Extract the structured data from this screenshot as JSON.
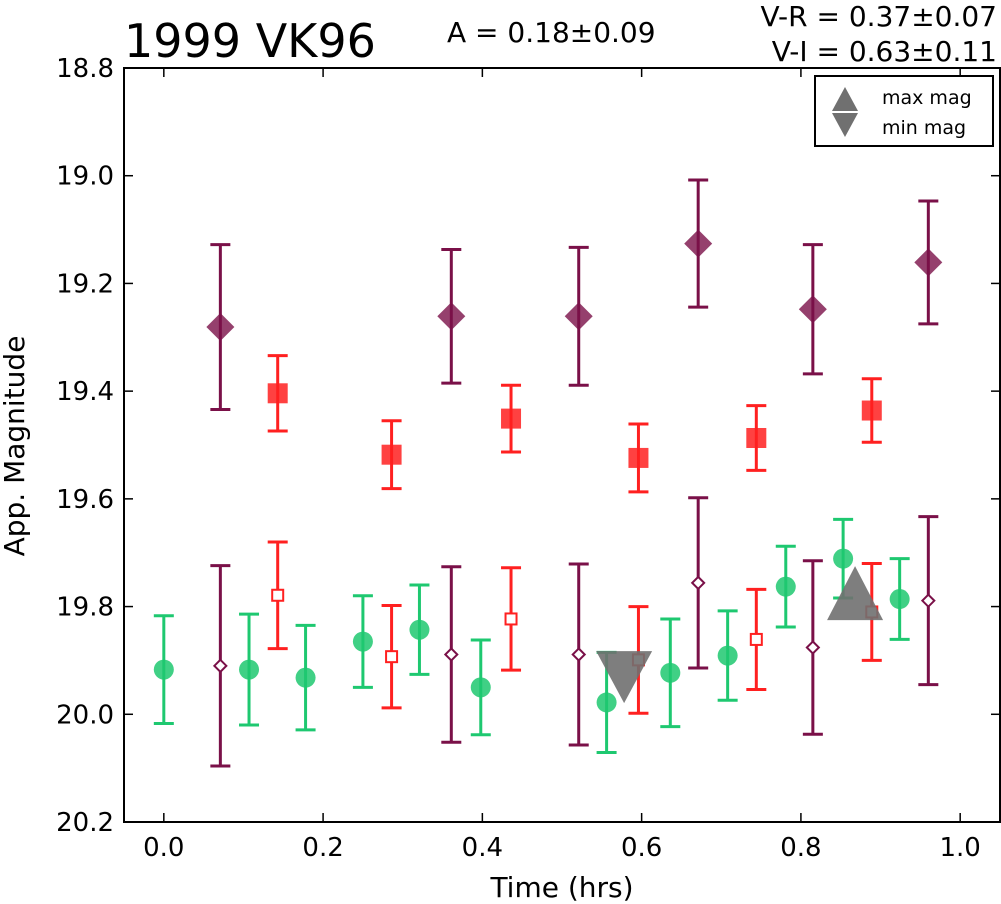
{
  "chart_data": {
    "type": "scatter",
    "title": "1999 VK96",
    "annotations": {
      "amplitude": "A  = 0.18±0.09",
      "v_r": "V-R = 0.37±0.07",
      "v_i": "V-I  = 0.63±0.11"
    },
    "xlabel": "Time (hrs)",
    "ylabel": "App. Magnitude",
    "xlim": [
      -0.05,
      1.05
    ],
    "ylim": [
      20.2,
      18.8
    ],
    "y_inverted": true,
    "x_ticks": [
      0.0,
      0.2,
      0.4,
      0.6,
      0.8,
      1.0
    ],
    "x_tick_labels": [
      "0.0",
      "0.2",
      "0.4",
      "0.6",
      "0.8",
      "1.0"
    ],
    "y_ticks": [
      18.8,
      19.0,
      19.2,
      19.4,
      19.6,
      19.8,
      20.0,
      20.2
    ],
    "y_tick_labels": [
      "18.8",
      "19.0",
      "19.2",
      "19.4",
      "19.6",
      "19.8",
      "20.0",
      "20.2"
    ],
    "grid": false,
    "legend": {
      "position": "top-right",
      "entries": [
        {
          "label": "max mag",
          "marker": "triangle-up"
        },
        {
          "label": "min mag",
          "marker": "triangle-down"
        }
      ]
    },
    "colors": {
      "green": "#1ec870",
      "red": "#ff2020",
      "purple": "#7a1048",
      "gray": "#707070"
    },
    "series": [
      {
        "marker": "circle",
        "color": "#1ec870",
        "fill": true,
        "points": [
          {
            "x": 0.0,
            "y": 19.917,
            "err": 0.1
          },
          {
            "x": 0.107,
            "y": 19.917,
            "err": 0.103
          },
          {
            "x": 0.178,
            "y": 19.932,
            "err": 0.097
          },
          {
            "x": 0.25,
            "y": 19.865,
            "err": 0.085
          },
          {
            "x": 0.321,
            "y": 19.843,
            "err": 0.083
          },
          {
            "x": 0.398,
            "y": 19.95,
            "err": 0.088
          },
          {
            "x": 0.556,
            "y": 19.978,
            "err": 0.093
          },
          {
            "x": 0.636,
            "y": 19.923,
            "err": 0.1
          },
          {
            "x": 0.708,
            "y": 19.891,
            "err": 0.083
          },
          {
            "x": 0.781,
            "y": 19.763,
            "err": 0.075
          },
          {
            "x": 0.853,
            "y": 19.711,
            "err": 0.073
          },
          {
            "x": 0.924,
            "y": 19.786,
            "err": 0.075
          }
        ]
      },
      {
        "marker": "square",
        "color": "#ff2020",
        "fill": true,
        "points": [
          {
            "x": 0.143,
            "y": 19.404,
            "err": 0.07
          },
          {
            "x": 0.286,
            "y": 19.518,
            "err": 0.063
          },
          {
            "x": 0.436,
            "y": 19.451,
            "err": 0.062
          },
          {
            "x": 0.596,
            "y": 19.524,
            "err": 0.063
          },
          {
            "x": 0.744,
            "y": 19.487,
            "err": 0.06
          },
          {
            "x": 0.889,
            "y": 19.436,
            "err": 0.059
          }
        ]
      },
      {
        "marker": "square",
        "color": "#ff2020",
        "fill": false,
        "points": [
          {
            "x": 0.143,
            "y": 19.779,
            "err": 0.099
          },
          {
            "x": 0.286,
            "y": 19.893,
            "err": 0.095
          },
          {
            "x": 0.436,
            "y": 19.823,
            "err": 0.095
          },
          {
            "x": 0.596,
            "y": 19.899,
            "err": 0.099
          },
          {
            "x": 0.744,
            "y": 19.861,
            "err": 0.093
          },
          {
            "x": 0.889,
            "y": 19.81,
            "err": 0.09
          }
        ]
      },
      {
        "marker": "diamond",
        "color": "#7a1048",
        "fill": true,
        "points": [
          {
            "x": 0.071,
            "y": 19.281,
            "err": 0.153
          },
          {
            "x": 0.361,
            "y": 19.261,
            "err": 0.124
          },
          {
            "x": 0.521,
            "y": 19.261,
            "err": 0.128
          },
          {
            "x": 0.671,
            "y": 19.126,
            "err": 0.118
          },
          {
            "x": 0.815,
            "y": 19.248,
            "err": 0.12
          },
          {
            "x": 0.96,
            "y": 19.161,
            "err": 0.114
          }
        ]
      },
      {
        "marker": "diamond",
        "color": "#7a1048",
        "fill": false,
        "points": [
          {
            "x": 0.071,
            "y": 19.91,
            "err": 0.186
          },
          {
            "x": 0.361,
            "y": 19.889,
            "err": 0.163
          },
          {
            "x": 0.521,
            "y": 19.889,
            "err": 0.168
          },
          {
            "x": 0.671,
            "y": 19.756,
            "err": 0.158
          },
          {
            "x": 0.815,
            "y": 19.876,
            "err": 0.161
          },
          {
            "x": 0.96,
            "y": 19.789,
            "err": 0.156
          }
        ]
      },
      {
        "marker": "triangle-down",
        "color": "#707070",
        "fill": true,
        "name": "min mag",
        "points": [
          {
            "x": 0.578,
            "y": 19.931
          }
        ]
      },
      {
        "marker": "triangle-up",
        "color": "#707070",
        "fill": true,
        "name": "max mag",
        "points": [
          {
            "x": 0.868,
            "y": 19.777
          }
        ]
      }
    ]
  }
}
